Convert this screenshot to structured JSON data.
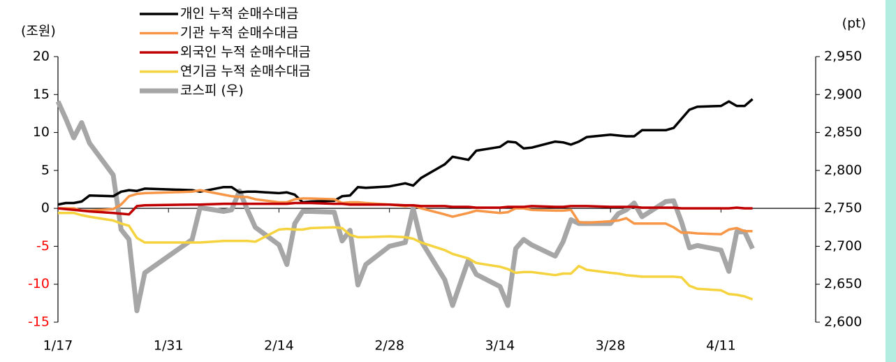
{
  "chart_data": {
    "type": "line",
    "y_label": "(조원)",
    "y2_label": "(pt)",
    "x": [
      "1/17",
      "1/18",
      "1/19",
      "1/20",
      "1/21",
      "1/24",
      "1/25",
      "1/26",
      "1/27",
      "1/28",
      "2/3",
      "2/4",
      "2/7",
      "2/8",
      "2/9",
      "2/10",
      "2/11",
      "2/14",
      "2/15",
      "2/16",
      "2/17",
      "2/18",
      "2/21",
      "2/22",
      "2/23",
      "2/24",
      "2/25",
      "2/28",
      "3/2",
      "3/3",
      "3/4",
      "3/7",
      "3/8",
      "3/10",
      "3/11",
      "3/14",
      "3/15",
      "3/16",
      "3/17",
      "3/18",
      "3/21",
      "3/22",
      "3/23",
      "3/24",
      "3/25",
      "3/28",
      "3/29",
      "3/30",
      "3/31",
      "4/1",
      "4/4",
      "4/5",
      "4/6",
      "4/7",
      "4/8",
      "4/11",
      "4/12",
      "4/13",
      "4/14",
      "4/15"
    ],
    "xlim": [
      "1/17",
      "4/23"
    ],
    "xticks": [
      "1/17",
      "1/31",
      "2/14",
      "2/28",
      "3/14",
      "3/28",
      "4/11"
    ],
    "ylim": [
      -15,
      20
    ],
    "yticks": [
      -15,
      -10,
      -5,
      0,
      5,
      10,
      15,
      20
    ],
    "negative_tick_color": "#ff0000",
    "y2lim": [
      2600,
      2950
    ],
    "y2ticks": [
      {
        "value": 2600,
        "label": "2,600"
      },
      {
        "value": 2650,
        "label": "2,650"
      },
      {
        "value": 2700,
        "label": "2,700"
      },
      {
        "value": 2750,
        "label": "2,750"
      },
      {
        "value": 2800,
        "label": "2,800"
      },
      {
        "value": 2850,
        "label": "2,850"
      },
      {
        "value": 2900,
        "label": "2,900"
      },
      {
        "value": 2950,
        "label": "2,950"
      }
    ],
    "series": [
      {
        "name": "개인 누적 순매수대금",
        "color": "#000000",
        "width": 3.5,
        "values": [
          0.5,
          0.7,
          0.7,
          0.9,
          1.7,
          1.6,
          2.2,
          2.4,
          2.3,
          2.6,
          2.4,
          2.2,
          2.8,
          2.8,
          2.1,
          2.2,
          2.2,
          2.0,
          2.1,
          1.8,
          0.8,
          0.9,
          1.0,
          1.6,
          1.7,
          2.8,
          2.7,
          2.9,
          3.3,
          3.0,
          4.0,
          5.8,
          6.8,
          6.4,
          7.6,
          8.1,
          8.8,
          8.7,
          7.9,
          8.0,
          8.8,
          8.7,
          8.4,
          8.8,
          9.4,
          9.7,
          9.6,
          9.5,
          9.5,
          10.3,
          10.3,
          10.6,
          11.8,
          13.0,
          13.4,
          13.5,
          14.1,
          13.5,
          13.5,
          14.4
        ]
      },
      {
        "name": "기관 누적 순매수대금",
        "color": "#f79646",
        "width": 3.5,
        "values": [
          0,
          0,
          0,
          -0.3,
          -0.3,
          -0.1,
          0.5,
          1.6,
          1.9,
          2.0,
          2.2,
          2.4,
          1.8,
          1.6,
          1.5,
          1.5,
          1.2,
          0.8,
          0.8,
          1.2,
          1.3,
          1.3,
          1.2,
          0.7,
          0.8,
          0.8,
          0.7,
          0.5,
          0.3,
          0.4,
          0,
          -0.8,
          -1.1,
          -0.6,
          -0.3,
          -0.6,
          -0.5,
          0,
          0,
          -0.2,
          -0.3,
          -0.3,
          -0.2,
          -1.8,
          -1.9,
          -1.7,
          -1.6,
          -1.3,
          -2.0,
          -2.0,
          -2.0,
          -2.5,
          -3.2,
          -3.2,
          -3.3,
          -3.4,
          -2.8,
          -2.6,
          -3.0,
          -3.0
        ]
      },
      {
        "name": "외국인 누적 순매수대금",
        "color": "#c00000",
        "width": 3.5,
        "values": [
          0,
          -0.1,
          -0.2,
          -0.3,
          -0.4,
          -0.6,
          -0.7,
          -0.8,
          0.3,
          0.4,
          0.5,
          0.5,
          0.6,
          0.6,
          0.6,
          0.6,
          0.6,
          0.6,
          0.6,
          0.7,
          0.7,
          0.7,
          0.6,
          0.6,
          0.5,
          0.5,
          0.5,
          0.5,
          0.4,
          0.4,
          0.3,
          0.3,
          0.2,
          0.2,
          0.1,
          0.1,
          0.2,
          0.2,
          0.2,
          0.3,
          0.2,
          0.2,
          0.3,
          0.3,
          0.3,
          0.2,
          0.2,
          0.2,
          0.2,
          0.1,
          0.1,
          0.1,
          0,
          0,
          0,
          0,
          0,
          0.1,
          0,
          0
        ]
      },
      {
        "name": "연기금 누적 순매수대금",
        "color": "#f5d33e",
        "width": 3.5,
        "values": [
          -0.6,
          -0.6,
          -0.6,
          -0.9,
          -1.1,
          -1.6,
          -2.0,
          -2.3,
          -3.9,
          -4.5,
          -4.5,
          -4.5,
          -4.3,
          -4.3,
          -4.3,
          -4.3,
          -4.4,
          -2.8,
          -2.7,
          -2.8,
          -2.8,
          -2.6,
          -2.5,
          -2.6,
          -3.5,
          -3.8,
          -3.8,
          -3.7,
          -3.8,
          -4.0,
          -4.5,
          -5.5,
          -6.0,
          -6.6,
          -7.2,
          -7.7,
          -8.0,
          -8.5,
          -8.4,
          -8.4,
          -8.8,
          -8.6,
          -8.6,
          -7.6,
          -8.1,
          -8.5,
          -8.6,
          -8.8,
          -8.9,
          -9.0,
          -9.0,
          -9.0,
          -9.1,
          -10.2,
          -10.6,
          -10.8,
          -11.3,
          -11.4,
          -11.6,
          -12.0
        ]
      },
      {
        "name": "코스피 (우)",
        "color": "#a6a6a6",
        "width": 7,
        "axis": "y2",
        "values": [
          2891,
          2868,
          2843,
          2863,
          2836,
          2794,
          2722,
          2709,
          2615,
          2665,
          2709,
          2751,
          2746,
          2748,
          2773,
          2748,
          2725,
          2702,
          2676,
          2730,
          2746,
          2746,
          2745,
          2707,
          2721,
          2649,
          2676,
          2700,
          2705,
          2750,
          2707,
          2656,
          2622,
          2682,
          2663,
          2647,
          2622,
          2697,
          2709,
          2702,
          2687,
          2706,
          2735,
          2730,
          2730,
          2730,
          2743,
          2748,
          2757,
          2739,
          2759,
          2760,
          2732,
          2698,
          2701,
          2695,
          2667,
          2719,
          2719,
          2697
        ]
      }
    ]
  }
}
